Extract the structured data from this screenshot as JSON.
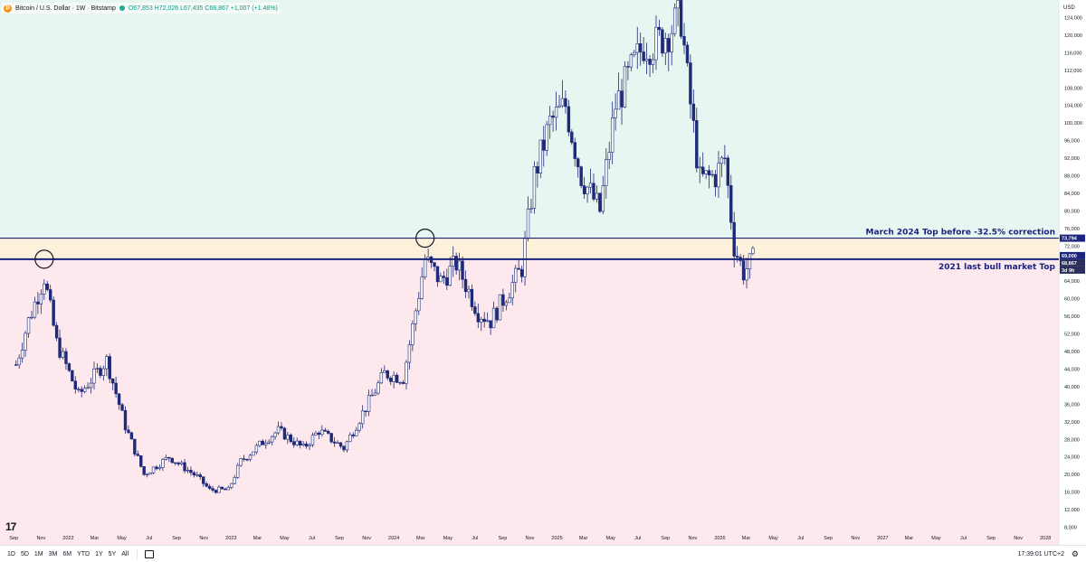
{
  "legend": {
    "symbol": "Bitcoin / U.S. Dollar · 1W · Bitstamp",
    "ohlc": "O67,853 H72,026 L67,435 C68,867 +1,007 (+1.48%)"
  },
  "currency": "USD",
  "price_badges": {
    "march_top": "73,794",
    "level_69k": "69,000",
    "last_price": "68,867",
    "countdown": "3d 9h"
  },
  "ranges": [
    "1D",
    "5D",
    "1M",
    "3M",
    "6M",
    "YTD",
    "1Y",
    "5Y",
    "All"
  ],
  "clock": "17:39:01 UTC+2",
  "logo": "17",
  "colors": {
    "up_candle": "#ffffff",
    "down_candle": "#1e2a78",
    "bull_zone": "#e8f6f1",
    "band_zone": "#fdf1dc",
    "bear_zone": "#fde8ee",
    "line_color": "#1a237e"
  },
  "chart_data": {
    "type": "candlestick",
    "timeframe": "1W",
    "y_axis_ticks": [
      "124,000",
      "120,000",
      "116,000",
      "112,000",
      "108,000",
      "104,000",
      "100,000",
      "96,000",
      "92,000",
      "88,000",
      "84,000",
      "80,000",
      "76,000",
      "72,000",
      "64,000",
      "60,000",
      "56,000",
      "52,000",
      "48,000",
      "44,000",
      "40,000",
      "36,000",
      "32,000",
      "28,000",
      "24,000",
      "20,000",
      "16,000",
      "12,000",
      "8,000"
    ],
    "x_axis_ticks": [
      {
        "label": "Sep",
        "date": "2021-09"
      },
      {
        "label": "Nov",
        "date": "2021-11"
      },
      {
        "label": "2022",
        "date": "2022-01"
      },
      {
        "label": "Mar",
        "date": "2022-03"
      },
      {
        "label": "May",
        "date": "2022-05"
      },
      {
        "label": "Jul",
        "date": "2022-07"
      },
      {
        "label": "Sep",
        "date": "2022-09"
      },
      {
        "label": "Nov",
        "date": "2022-11"
      },
      {
        "label": "2023",
        "date": "2023-01"
      },
      {
        "label": "Mar",
        "date": "2023-03"
      },
      {
        "label": "May",
        "date": "2023-05"
      },
      {
        "label": "Jul",
        "date": "2023-07"
      },
      {
        "label": "Sep",
        "date": "2023-09"
      },
      {
        "label": "Nov",
        "date": "2023-11"
      },
      {
        "label": "2024",
        "date": "2024-01"
      },
      {
        "label": "Mar",
        "date": "2024-03"
      },
      {
        "label": "May",
        "date": "2024-05"
      },
      {
        "label": "Jul",
        "date": "2024-07"
      },
      {
        "label": "Sep",
        "date": "2024-09"
      },
      {
        "label": "Nov",
        "date": "2024-11"
      },
      {
        "label": "2025",
        "date": "2025-01"
      },
      {
        "label": "Mar",
        "date": "2025-03"
      },
      {
        "label": "May",
        "date": "2025-05"
      },
      {
        "label": "Jul",
        "date": "2025-07"
      },
      {
        "label": "Sep",
        "date": "2025-09"
      },
      {
        "label": "Nov",
        "date": "2025-11"
      },
      {
        "label": "2026",
        "date": "2026-01"
      },
      {
        "label": "Mar",
        "date": "2026-03"
      },
      {
        "label": "May",
        "date": "2026-05"
      },
      {
        "label": "Jul",
        "date": "2026-07"
      },
      {
        "label": "Sep",
        "date": "2026-09"
      },
      {
        "label": "Nov",
        "date": "2026-11"
      },
      {
        "label": "2027",
        "date": "2027-01"
      },
      {
        "label": "Mar",
        "date": "2027-03"
      },
      {
        "label": "May",
        "date": "2027-05"
      },
      {
        "label": "Jul",
        "date": "2027-07"
      },
      {
        "label": "Sep",
        "date": "2027-09"
      },
      {
        "label": "Nov",
        "date": "2027-11"
      },
      {
        "label": "2028",
        "date": "2028-01"
      }
    ],
    "y_range": [
      4000,
      128000
    ],
    "horizontal_levels": [
      {
        "price": 73794,
        "label": "March 2024 Top before -32.5% correction"
      },
      {
        "price": 69000,
        "label": "2021 last bull market Top"
      }
    ],
    "zones": [
      {
        "from": 73794,
        "to": 128000,
        "name": "bull_zone"
      },
      {
        "from": 69000,
        "to": 73794,
        "name": "band_zone"
      },
      {
        "from": 4000,
        "to": 69000,
        "name": "bear_zone"
      }
    ],
    "markers": [
      {
        "shape": "circle",
        "date": "2021-11-08",
        "price": 69000
      },
      {
        "shape": "circle",
        "date": "2024-03-11",
        "price": 73794
      }
    ],
    "price_path": [
      {
        "date": "2021-09-06",
        "close": 45000
      },
      {
        "date": "2021-10-04",
        "close": 55000
      },
      {
        "date": "2021-11-08",
        "close": 65000
      },
      {
        "date": "2021-12-06",
        "close": 50000
      },
      {
        "date": "2022-01-24",
        "close": 38000
      },
      {
        "date": "2022-03-28",
        "close": 46000
      },
      {
        "date": "2022-05-09",
        "close": 31000
      },
      {
        "date": "2022-06-20",
        "close": 20000
      },
      {
        "date": "2022-08-15",
        "close": 24000
      },
      {
        "date": "2022-10-17",
        "close": 19500
      },
      {
        "date": "2022-11-14",
        "close": 16500
      },
      {
        "date": "2022-12-26",
        "close": 16500
      },
      {
        "date": "2023-01-23",
        "close": 23000
      },
      {
        "date": "2023-03-20",
        "close": 28000
      },
      {
        "date": "2023-04-17",
        "close": 30000
      },
      {
        "date": "2023-06-12",
        "close": 26000
      },
      {
        "date": "2023-07-17",
        "close": 30000
      },
      {
        "date": "2023-09-11",
        "close": 26000
      },
      {
        "date": "2023-10-23",
        "close": 34000
      },
      {
        "date": "2023-12-11",
        "close": 43000
      },
      {
        "date": "2024-01-22",
        "close": 42000
      },
      {
        "date": "2024-03-11",
        "close": 69000
      },
      {
        "date": "2024-04-15",
        "close": 64000
      },
      {
        "date": "2024-05-20",
        "close": 68000
      },
      {
        "date": "2024-07-08",
        "close": 57000
      },
      {
        "date": "2024-08-05",
        "close": 55000
      },
      {
        "date": "2024-10-14",
        "close": 67000
      },
      {
        "date": "2024-11-11",
        "close": 88000
      },
      {
        "date": "2024-12-16",
        "close": 100000
      },
      {
        "date": "2025-01-20",
        "close": 104000
      },
      {
        "date": "2025-02-24",
        "close": 88000
      },
      {
        "date": "2025-04-07",
        "close": 80000
      },
      {
        "date": "2025-05-12",
        "close": 104000
      },
      {
        "date": "2025-07-14",
        "close": 118000
      },
      {
        "date": "2025-08-11",
        "close": 118000
      },
      {
        "date": "2025-10-06",
        "close": 124000
      },
      {
        "date": "2025-10-20",
        "close": 110000
      },
      {
        "date": "2025-11-17",
        "close": 87000
      },
      {
        "date": "2025-12-22",
        "close": 88000
      },
      {
        "date": "2026-01-12",
        "close": 92000
      },
      {
        "date": "2026-02-02",
        "close": 72000
      },
      {
        "date": "2026-02-23",
        "close": 66000
      },
      {
        "date": "2026-03-16",
        "close": 68867
      }
    ]
  }
}
